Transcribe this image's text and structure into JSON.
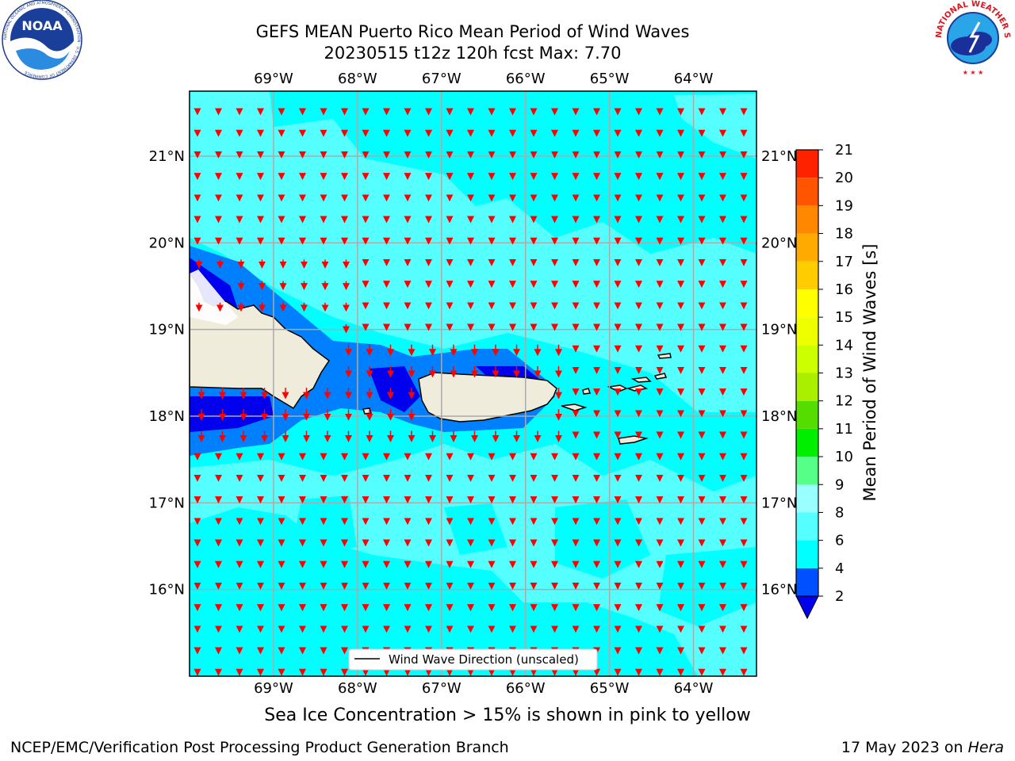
{
  "title": {
    "line1": "GEFS MEAN Puerto Rico Mean Period of Wind Waves",
    "line2": "20230515 t12z 120h fcst   Max: 7.70"
  },
  "logos": {
    "left": "NOAA",
    "left_ring_text": "NATIONAL OCEANIC AND ATMOSPHERIC ADMINISTRATION · U.S. DEPARTMENT OF COMMERCE",
    "right_ring_text": "NATIONAL WEATHER SERVICE"
  },
  "map": {
    "lon_ticks": [
      "69°W",
      "68°W",
      "67°W",
      "66°W",
      "65°W",
      "64°W"
    ],
    "lat_ticks": [
      "21°N",
      "20°N",
      "19°N",
      "18°N",
      "17°N",
      "16°N"
    ],
    "lon_values": [
      -69,
      -68,
      -67,
      -66,
      -65,
      -64
    ],
    "lat_values": [
      21,
      20,
      19,
      18,
      17,
      16
    ],
    "extent": {
      "lon_min": -70,
      "lon_max": -63.25,
      "lat_min": 15,
      "lat_max": 21.75
    },
    "legend_label": "Wind Wave Direction (unscaled)",
    "arrow_color": "#ff0000",
    "land_color": "#efecdc"
  },
  "colorbar": {
    "label": "Mean Period of Wind Waves [s]",
    "ticks": [
      "2",
      "4",
      "6",
      "8",
      "9",
      "10",
      "11",
      "12",
      "13",
      "14",
      "15",
      "16",
      "17",
      "18",
      "19",
      "20",
      "21"
    ],
    "colors": [
      "#0050ff",
      "#00ffff",
      "#55ffff",
      "#99ffff",
      "#55ff88",
      "#00ee00",
      "#55dd00",
      "#aaee00",
      "#ccff00",
      "#eeff00",
      "#ffff00",
      "#ffcc00",
      "#ffaa00",
      "#ff8800",
      "#ff5500",
      "#ff2200",
      "#ff0000"
    ],
    "under_color": "#0000ee"
  },
  "subcaption": "Sea Ice Concentration > 15% is shown in pink to yellow",
  "footer": {
    "left": "NCEP/EMC/Verification Post Processing Product Generation Branch",
    "date": "17 May 2023 on ",
    "machine": "Hera"
  }
}
